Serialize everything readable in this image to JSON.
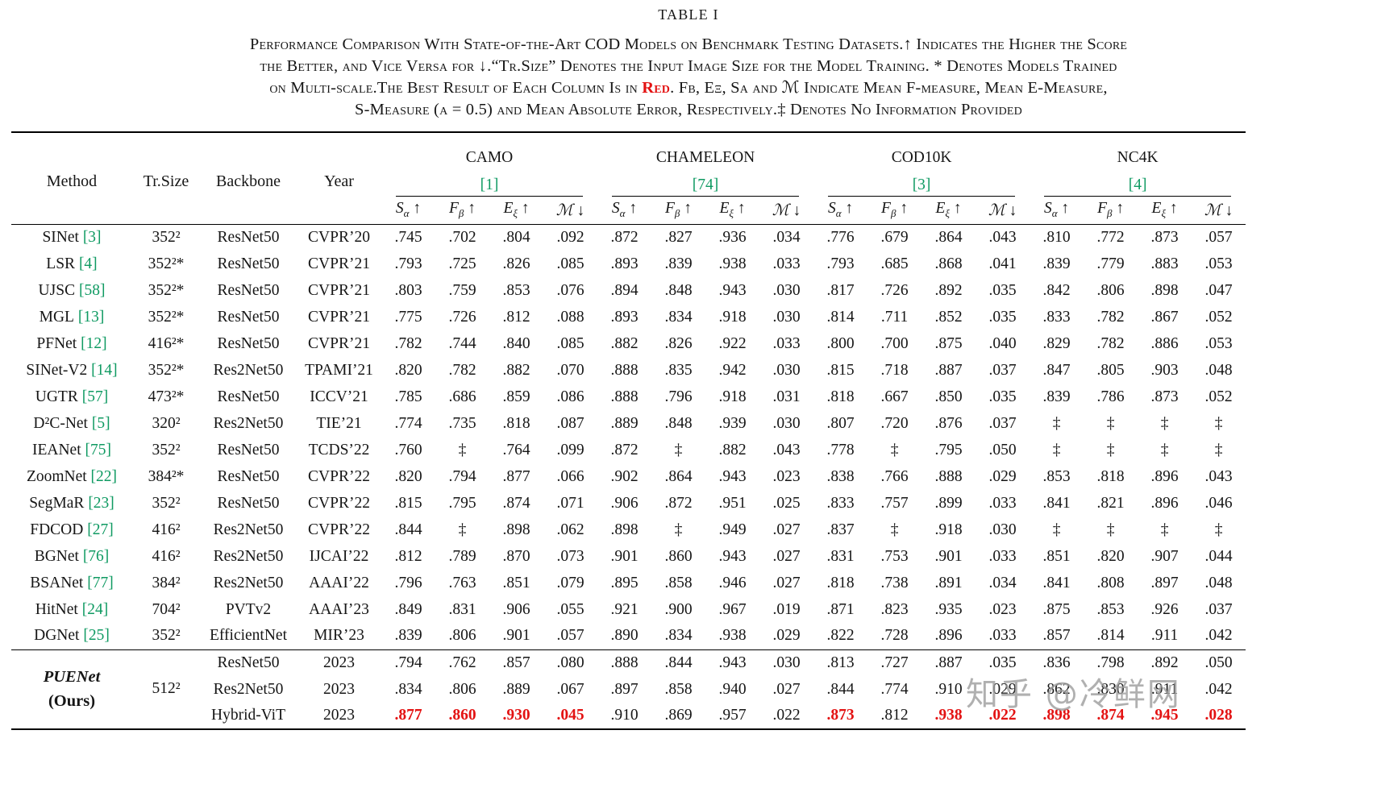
{
  "title": "TABLE I",
  "caption": {
    "line1": "Performance Comparison With State-of-the-Art COD Models on Benchmark Testing Datasets.↑ Indicates the Higher the Score",
    "line2": "the Better, and Vice Versa for ↓.“Tr.Size” Denotes the Input Image Size for the Model Training. * Denotes Models Trained",
    "line3_pre": "on Multi-scale.The Best Result of Each Column Is in ",
    "line3_red": "Red",
    "line3_post": ". Fβ, Eξ, Sα and ℳ Indicate Mean F-measure, Mean E-Measure,",
    "line4": "S-Measure (α = 0.5) and Mean Absolute Error, Respectively.‡ Denotes No Information Provided"
  },
  "colors": {
    "best": "#e31212",
    "cite": "#0f9a62"
  },
  "watermark": {
    "text": "知乎 @冷鲜网"
  },
  "table": {
    "col_labels": {
      "method": "Method",
      "trsize": "Tr.Size",
      "backbone": "Backbone",
      "year": "Year"
    },
    "groups": [
      {
        "name": "CAMO",
        "cite": "[1]"
      },
      {
        "name": "CHAMELEON",
        "cite": "[74]"
      },
      {
        "name": "COD10K",
        "cite": "[3]"
      },
      {
        "name": "NC4K",
        "cite": "[4]"
      }
    ],
    "metrics": [
      {
        "key": "s-alpha",
        "base": "S",
        "sub": "α",
        "arrow": "↑"
      },
      {
        "key": "f-beta",
        "base": "F",
        "sub": "β",
        "arrow": "↑"
      },
      {
        "key": "e-xi",
        "base": "E",
        "sub": "ξ",
        "arrow": "↑"
      },
      {
        "key": "mae",
        "base": "ℳ",
        "sub": "",
        "arrow": "↓"
      }
    ],
    "rows": [
      {
        "method": {
          "name": "SINet",
          "cite": "[3]"
        },
        "trsize": "352²",
        "backbone": "ResNet50",
        "year": "CVPR’20",
        "values": [
          ".745",
          ".702",
          ".804",
          ".092",
          ".872",
          ".827",
          ".936",
          ".034",
          ".776",
          ".679",
          ".864",
          ".043",
          ".810",
          ".772",
          ".873",
          ".057"
        ]
      },
      {
        "method": {
          "name": "LSR",
          "cite": "[4]"
        },
        "trsize": "352²*",
        "backbone": "ResNet50",
        "year": "CVPR’21",
        "values": [
          ".793",
          ".725",
          ".826",
          ".085",
          ".893",
          ".839",
          ".938",
          ".033",
          ".793",
          ".685",
          ".868",
          ".041",
          ".839",
          ".779",
          ".883",
          ".053"
        ]
      },
      {
        "method": {
          "name": "UJSC",
          "cite": "[58]"
        },
        "trsize": "352²*",
        "backbone": "ResNet50",
        "year": "CVPR’21",
        "values": [
          ".803",
          ".759",
          ".853",
          ".076",
          ".894",
          ".848",
          ".943",
          ".030",
          ".817",
          ".726",
          ".892",
          ".035",
          ".842",
          ".806",
          ".898",
          ".047"
        ]
      },
      {
        "method": {
          "name": "MGL",
          "cite": "[13]"
        },
        "trsize": "352²*",
        "backbone": "ResNet50",
        "year": "CVPR’21",
        "values": [
          ".775",
          ".726",
          ".812",
          ".088",
          ".893",
          ".834",
          ".918",
          ".030",
          ".814",
          ".711",
          ".852",
          ".035",
          ".833",
          ".782",
          ".867",
          ".052"
        ]
      },
      {
        "method": {
          "name": "PFNet",
          "cite": "[12]"
        },
        "trsize": "416²*",
        "backbone": "ResNet50",
        "year": "CVPR’21",
        "values": [
          ".782",
          ".744",
          ".840",
          ".085",
          ".882",
          ".826",
          ".922",
          ".033",
          ".800",
          ".700",
          ".875",
          ".040",
          ".829",
          ".782",
          ".886",
          ".053"
        ]
      },
      {
        "method": {
          "name": "SINet-V2",
          "cite": "[14]"
        },
        "trsize": "352²*",
        "backbone": "Res2Net50",
        "year": "TPAMI’21",
        "values": [
          ".820",
          ".782",
          ".882",
          ".070",
          ".888",
          ".835",
          ".942",
          ".030",
          ".815",
          ".718",
          ".887",
          ".037",
          ".847",
          ".805",
          ".903",
          ".048"
        ]
      },
      {
        "method": {
          "name": "UGTR",
          "cite": "[57]"
        },
        "trsize": "473²*",
        "backbone": "ResNet50",
        "year": "ICCV’21",
        "values": [
          ".785",
          ".686",
          ".859",
          ".086",
          ".888",
          ".796",
          ".918",
          ".031",
          ".818",
          ".667",
          ".850",
          ".035",
          ".839",
          ".786",
          ".873",
          ".052"
        ]
      },
      {
        "method": {
          "name": "D²C-Net",
          "cite": "[5]"
        },
        "trsize": "320²",
        "backbone": "Res2Net50",
        "year": "TIE’21",
        "values": [
          ".774",
          ".735",
          ".818",
          ".087",
          ".889",
          ".848",
          ".939",
          ".030",
          ".807",
          ".720",
          ".876",
          ".037",
          "‡",
          "‡",
          "‡",
          "‡"
        ]
      },
      {
        "method": {
          "name": "IEANet",
          "cite": "[75]"
        },
        "trsize": "352²",
        "backbone": "ResNet50",
        "year": "TCDS’22",
        "values": [
          ".760",
          "‡",
          ".764",
          ".099",
          ".872",
          "‡",
          ".882",
          ".043",
          ".778",
          "‡",
          ".795",
          ".050",
          "‡",
          "‡",
          "‡",
          "‡"
        ]
      },
      {
        "method": {
          "name": "ZoomNet",
          "cite": "[22]"
        },
        "trsize": "384²*",
        "backbone": "ResNet50",
        "year": "CVPR’22",
        "values": [
          ".820",
          ".794",
          ".877",
          ".066",
          ".902",
          ".864",
          ".943",
          ".023",
          ".838",
          ".766",
          ".888",
          ".029",
          ".853",
          ".818",
          ".896",
          ".043"
        ]
      },
      {
        "method": {
          "name": "SegMaR",
          "cite": "[23]"
        },
        "trsize": "352²",
        "backbone": "ResNet50",
        "year": "CVPR’22",
        "values": [
          ".815",
          ".795",
          ".874",
          ".071",
          ".906",
          ".872",
          ".951",
          ".025",
          ".833",
          ".757",
          ".899",
          ".033",
          ".841",
          ".821",
          ".896",
          ".046"
        ]
      },
      {
        "method": {
          "name": "FDCOD",
          "cite": "[27]"
        },
        "trsize": "416²",
        "backbone": "Res2Net50",
        "year": "CVPR’22",
        "values": [
          ".844",
          "‡",
          ".898",
          ".062",
          ".898",
          "‡",
          ".949",
          ".027",
          ".837",
          "‡",
          ".918",
          ".030",
          "‡",
          "‡",
          "‡",
          "‡"
        ]
      },
      {
        "method": {
          "name": "BGNet",
          "cite": "[76]"
        },
        "trsize": "416²",
        "backbone": "Res2Net50",
        "year": "IJCAI’22",
        "values": [
          ".812",
          ".789",
          ".870",
          ".073",
          ".901",
          ".860",
          ".943",
          ".027",
          ".831",
          ".753",
          ".901",
          ".033",
          ".851",
          ".820",
          ".907",
          ".044"
        ]
      },
      {
        "method": {
          "name": "BSANet",
          "cite": "[77]"
        },
        "trsize": "384²",
        "backbone": "Res2Net50",
        "year": "AAAI’22",
        "values": [
          ".796",
          ".763",
          ".851",
          ".079",
          ".895",
          ".858",
          ".946",
          ".027",
          ".818",
          ".738",
          ".891",
          ".034",
          ".841",
          ".808",
          ".897",
          ".048"
        ]
      },
      {
        "method": {
          "name": "HitNet",
          "cite": "[24]"
        },
        "trsize": "704²",
        "backbone": "PVTv2",
        "year": "AAAI’23",
        "values": [
          ".849",
          ".831",
          ".906",
          ".055",
          ".921",
          ".900",
          ".967",
          ".019",
          ".871",
          ".823",
          ".935",
          ".023",
          ".875",
          ".853",
          ".926",
          ".037"
        ]
      },
      {
        "method": {
          "name": "DGNet",
          "cite": "[25]"
        },
        "trsize": "352²",
        "backbone": "EfficientNet",
        "year": "MIR’23",
        "values": [
          ".839",
          ".806",
          ".901",
          ".057",
          ".890",
          ".834",
          ".938",
          ".029",
          ".822",
          ".728",
          ".896",
          ".033",
          ".857",
          ".814",
          ".911",
          ".042"
        ]
      },
      {
        "group": {
          "line1": "PUENet",
          "line2": "(Ours)",
          "trsize": "512²",
          "span": 3
        },
        "top_rule": true,
        "backbone": "ResNet50",
        "year": "2023",
        "values": [
          ".794",
          ".762",
          ".857",
          ".080",
          ".888",
          ".844",
          ".943",
          ".030",
          ".813",
          ".727",
          ".887",
          ".035",
          ".836",
          ".798",
          ".892",
          ".050"
        ]
      },
      {
        "backbone": "Res2Net50",
        "year": "2023",
        "values": [
          ".834",
          ".806",
          ".889",
          ".067",
          ".897",
          ".858",
          ".940",
          ".027",
          ".844",
          ".774",
          ".910",
          ".029",
          ".862",
          ".830",
          ".911",
          ".042"
        ]
      },
      {
        "backbone": "Hybrid-ViT",
        "year": "2023",
        "values": [
          ".877",
          ".860",
          ".930",
          ".045",
          ".910",
          ".869",
          ".957",
          ".022",
          ".873",
          ".812",
          ".938",
          ".022",
          ".898",
          ".874",
          ".945",
          ".028"
        ],
        "red": [
          0,
          1,
          2,
          3,
          8,
          10,
          11,
          12,
          13,
          14,
          15
        ]
      }
    ]
  }
}
